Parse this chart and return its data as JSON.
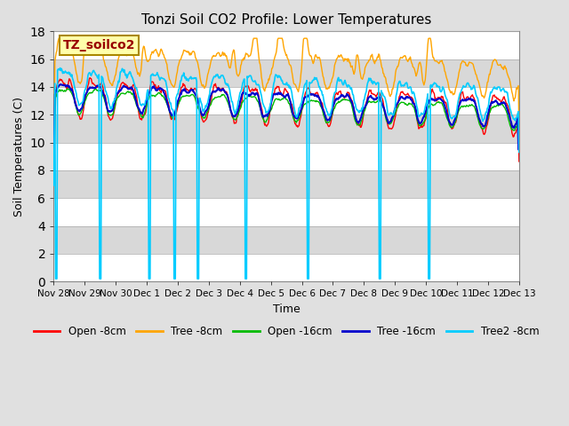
{
  "title": "Tonzi Soil CO2 Profile: Lower Temperatures",
  "ylabel": "Soil Temperatures (C)",
  "xlabel": "Time",
  "ylim": [
    0,
    18
  ],
  "annotation": "TZ_soilco2",
  "legend": [
    "Open -8cm",
    "Tree -8cm",
    "Open -16cm",
    "Tree -16cm",
    "Tree2 -8cm"
  ],
  "colors": [
    "#ff0000",
    "#ffa500",
    "#00bb00",
    "#0000cc",
    "#00ccff"
  ],
  "xtick_labels": [
    "Nov 28",
    "Nov 29",
    "Nov 30",
    "Dec 1",
    "Dec 2",
    "Dec 3",
    "Dec 4",
    "Dec 5",
    "Dec 6",
    "Dec 7",
    "Dec 8",
    "Dec 9",
    "Dec 10",
    "Dec 11",
    "Dec 12",
    "Dec 13"
  ],
  "background_bands": [
    "#ffffff",
    "#d8d8d8"
  ],
  "fig_bg": "#e0e0e0",
  "plot_bg": "#e8e8e8"
}
